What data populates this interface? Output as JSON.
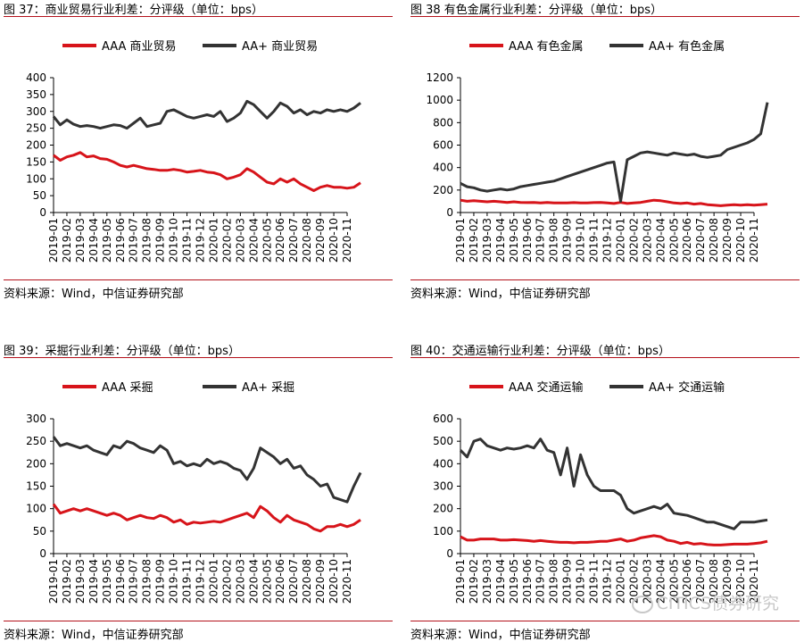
{
  "charts": [
    {
      "title": "图 37：商业贸易行业利差：分评级（单位：bps）",
      "source": "资料来源：Wind，中信证券研究部",
      "chart_data": {
        "type": "line",
        "ylim": [
          0,
          400
        ],
        "yticks": [
          0,
          50,
          100,
          150,
          200,
          250,
          300,
          350,
          400
        ],
        "x_ticks": [
          "2019-01",
          "2019-02",
          "2019-03",
          "2019-04",
          "2019-05",
          "2019-06",
          "2019-07",
          "2019-08",
          "2019-09",
          "2019-10",
          "2019-11",
          "2019-12",
          "2020-01",
          "2020-02",
          "2020-03",
          "2020-04",
          "2020-05",
          "2020-06",
          "2020-07",
          "2020-08",
          "2020-09",
          "2020-10",
          "2020-11"
        ],
        "x": [
          0,
          0.5,
          1,
          1.5,
          2,
          2.5,
          3,
          3.5,
          4,
          4.5,
          5,
          5.5,
          6,
          6.5,
          7,
          7.5,
          8,
          8.5,
          9,
          9.5,
          10,
          10.5,
          11,
          11.5,
          12,
          12.5,
          13,
          13.5,
          14,
          14.5,
          15,
          15.5,
          16,
          16.5,
          17,
          17.5,
          18,
          18.5,
          19,
          19.5,
          20,
          20.5,
          21,
          21.5,
          22,
          22.5,
          23
        ],
        "legend_position": "top",
        "series": [
          {
            "name": "AAA 商业贸易",
            "color": "#d7141a",
            "values": [
              170,
              155,
              165,
              170,
              178,
              165,
              168,
              160,
              158,
              150,
              140,
              135,
              140,
              135,
              130,
              128,
              125,
              125,
              128,
              125,
              120,
              122,
              125,
              120,
              118,
              112,
              100,
              105,
              112,
              130,
              120,
              105,
              90,
              85,
              100,
              90,
              100,
              85,
              75,
              65,
              75,
              80,
              75,
              75,
              72,
              75,
              88
            ]
          },
          {
            "name": "AA+ 商业贸易",
            "color": "#333333",
            "values": [
              285,
              260,
              275,
              262,
              255,
              258,
              255,
              250,
              255,
              260,
              258,
              250,
              265,
              280,
              255,
              260,
              265,
              300,
              305,
              295,
              285,
              280,
              285,
              290,
              285,
              300,
              270,
              280,
              295,
              330,
              320,
              300,
              280,
              300,
              325,
              315,
              295,
              305,
              290,
              300,
              295,
              305,
              300,
              305,
              300,
              310,
              325
            ]
          }
        ]
      }
    },
    {
      "title": "图 38 有色金属行业利差：分评级（单位：bps）",
      "source": "资料来源：Wind，中信证券研究部",
      "chart_data": {
        "type": "line",
        "ylim": [
          0,
          1200
        ],
        "yticks": [
          0,
          200,
          400,
          600,
          800,
          1000,
          1200
        ],
        "x_ticks": [
          "2019-01",
          "2019-02",
          "2019-03",
          "2019-04",
          "2019-05",
          "2019-06",
          "2019-07",
          "2019-08",
          "2019-09",
          "2019-10",
          "2019-11",
          "2019-12",
          "2020-01",
          "2020-02",
          "2020-03",
          "2020-04",
          "2020-05",
          "2020-06",
          "2020-07",
          "2020-08",
          "2020-09",
          "2020-10",
          "2020-11"
        ],
        "x": [
          0,
          0.5,
          1,
          1.5,
          2,
          2.5,
          3,
          3.5,
          4,
          4.5,
          5,
          5.5,
          6,
          6.5,
          7,
          7.5,
          8,
          8.5,
          9,
          9.5,
          10,
          10.5,
          11,
          11.5,
          12,
          12.5,
          13,
          13.5,
          14,
          14.5,
          15,
          15.5,
          16,
          16.5,
          17,
          17.5,
          18,
          18.5,
          19,
          19.5,
          20,
          20.5,
          21,
          21.5,
          22,
          22.5,
          23
        ],
        "legend_position": "top",
        "series": [
          {
            "name": "AAA 有色金属",
            "color": "#d7141a",
            "values": [
              110,
              100,
              105,
              100,
              95,
              100,
              95,
              90,
              95,
              90,
              88,
              90,
              85,
              90,
              85,
              85,
              85,
              88,
              85,
              85,
              88,
              90,
              85,
              80,
              90,
              80,
              85,
              90,
              100,
              110,
              105,
              95,
              85,
              80,
              85,
              75,
              80,
              70,
              65,
              60,
              65,
              70,
              65,
              70,
              65,
              70,
              75
            ]
          },
          {
            "name": "AA+ 有色金属",
            "color": "#333333",
            "values": [
              260,
              230,
              220,
              200,
              190,
              200,
              210,
              200,
              210,
              230,
              240,
              250,
              260,
              270,
              280,
              300,
              320,
              340,
              360,
              380,
              400,
              420,
              440,
              450,
              100,
              470,
              500,
              530,
              540,
              530,
              520,
              510,
              530,
              520,
              510,
              520,
              500,
              490,
              500,
              510,
              560,
              580,
              600,
              620,
              650,
              700,
              980
            ]
          }
        ]
      }
    },
    {
      "title": "图 39：采掘行业利差：分评级（单位：bps）",
      "source": "资料来源：Wind，中信证券研究部",
      "chart_data": {
        "type": "line",
        "ylim": [
          0,
          300
        ],
        "yticks": [
          0,
          50,
          100,
          150,
          200,
          250,
          300
        ],
        "x_ticks": [
          "2019-01",
          "2019-02",
          "2019-03",
          "2019-04",
          "2019-05",
          "2019-06",
          "2019-07",
          "2019-08",
          "2019-09",
          "2019-10",
          "2019-11",
          "2019-12",
          "2020-01",
          "2020-02",
          "2020-03",
          "2020-04",
          "2020-05",
          "2020-06",
          "2020-07",
          "2020-08",
          "2020-09",
          "2020-10",
          "2020-11"
        ],
        "x": [
          0,
          0.5,
          1,
          1.5,
          2,
          2.5,
          3,
          3.5,
          4,
          4.5,
          5,
          5.5,
          6,
          6.5,
          7,
          7.5,
          8,
          8.5,
          9,
          9.5,
          10,
          10.5,
          11,
          11.5,
          12,
          12.5,
          13,
          13.5,
          14,
          14.5,
          15,
          15.5,
          16,
          16.5,
          17,
          17.5,
          18,
          18.5,
          19,
          19.5,
          20,
          20.5,
          21,
          21.5,
          22,
          22.5,
          23
        ],
        "legend_position": "top",
        "series": [
          {
            "name": "AAA 采掘",
            "color": "#d7141a",
            "values": [
              110,
              90,
              95,
              100,
              95,
              100,
              95,
              90,
              85,
              90,
              85,
              75,
              80,
              85,
              80,
              78,
              85,
              80,
              70,
              75,
              65,
              70,
              68,
              70,
              72,
              70,
              75,
              80,
              85,
              90,
              80,
              105,
              95,
              80,
              70,
              85,
              75,
              70,
              65,
              55,
              50,
              60,
              60,
              65,
              60,
              65,
              75
            ]
          },
          {
            "name": "AA+ 采掘",
            "color": "#333333",
            "values": [
              260,
              240,
              245,
              240,
              235,
              240,
              230,
              225,
              220,
              240,
              235,
              250,
              245,
              235,
              230,
              225,
              240,
              230,
              200,
              205,
              195,
              200,
              195,
              210,
              200,
              205,
              200,
              190,
              185,
              165,
              190,
              235,
              225,
              215,
              200,
              210,
              190,
              195,
              175,
              165,
              150,
              155,
              125,
              120,
              115,
              150,
              180
            ]
          }
        ]
      }
    },
    {
      "title": "图 40：交通运输行业利差：分评级（单位：bps）",
      "source": "资料来源：Wind，中信证券研究部",
      "watermark": "CITICS债券研究",
      "chart_data": {
        "type": "line",
        "ylim": [
          0,
          600
        ],
        "yticks": [
          0,
          100,
          200,
          300,
          400,
          500,
          600
        ],
        "x_ticks": [
          "2019-01",
          "2019-02",
          "2019-03",
          "2019-04",
          "2019-05",
          "2019-06",
          "2019-07",
          "2019-08",
          "2019-09",
          "2019-10",
          "2019-11",
          "2019-12",
          "2020-01",
          "2020-02",
          "2020-03",
          "2020-04",
          "2020-05",
          "2020-06",
          "2020-07",
          "2020-08",
          "2020-09",
          "2020-10",
          "2020-11"
        ],
        "x": [
          0,
          0.5,
          1,
          1.5,
          2,
          2.5,
          3,
          3.5,
          4,
          4.5,
          5,
          5.5,
          6,
          6.5,
          7,
          7.5,
          8,
          8.5,
          9,
          9.5,
          10,
          10.5,
          11,
          11.5,
          12,
          12.5,
          13,
          13.5,
          14,
          14.5,
          15,
          15.5,
          16,
          16.5,
          17,
          17.5,
          18,
          18.5,
          19,
          19.5,
          20,
          20.5,
          21,
          21.5,
          22,
          22.5,
          23
        ],
        "legend_position": "top",
        "series": [
          {
            "name": "AAA 交通运输",
            "color": "#d7141a",
            "values": [
              75,
              60,
              60,
              65,
              65,
              65,
              60,
              60,
              62,
              60,
              58,
              55,
              58,
              55,
              52,
              50,
              50,
              48,
              50,
              50,
              52,
              55,
              55,
              60,
              65,
              55,
              60,
              70,
              75,
              80,
              75,
              60,
              55,
              45,
              50,
              42,
              45,
              40,
              38,
              38,
              40,
              42,
              42,
              42,
              45,
              48,
              55
            ]
          },
          {
            "name": "AA+ 交通运输",
            "color": "#333333",
            "values": [
              460,
              430,
              500,
              510,
              480,
              470,
              460,
              470,
              465,
              470,
              480,
              470,
              510,
              460,
              450,
              350,
              470,
              300,
              440,
              350,
              300,
              280,
              280,
              280,
              260,
              200,
              180,
              190,
              200,
              210,
              200,
              220,
              180,
              175,
              170,
              160,
              150,
              140,
              140,
              130,
              120,
              110,
              140,
              140,
              140,
              145,
              150
            ]
          }
        ]
      }
    }
  ]
}
